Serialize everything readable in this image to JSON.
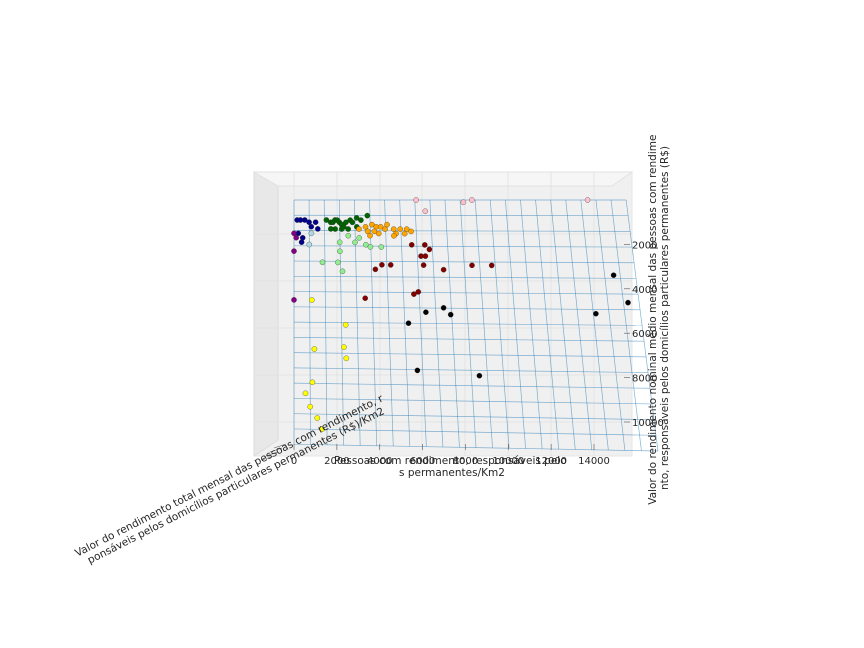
{
  "chart_data": {
    "type": "scatter",
    "projection": "3d",
    "grid": true,
    "xlabel_lines": [
      "Pessoas com rendimento, responsáveis pelo",
      "s permanentes/Km2"
    ],
    "ylabel_lines": [
      "Valor do rendimento nominal médio mensal das pessoas com rendime",
      "nto, responsáveis pelos domicílios particulares permanentes (R$)"
    ],
    "zlabel_lines": [
      "Valor do rendimento total mensal das pessoas com rendimento, r",
      "ponsáveis pelos domicílios particulares permanentes (R$)/Km2"
    ],
    "x_ticks": [
      "0",
      "2000",
      "4000",
      "6000",
      "8000",
      "10000",
      "12000",
      "14000"
    ],
    "y_ticks": [
      "2000",
      "4000",
      "6000",
      "8000",
      "10000"
    ],
    "xlim": [
      0,
      15500
    ],
    "ylim": [
      0,
      11000
    ],
    "surface": {
      "label": "fitted plane",
      "color": "#1f77b4"
    },
    "series": [
      {
        "color": "#00008b",
        "points": [
          [
            150,
            900
          ],
          [
            300,
            900
          ],
          [
            500,
            900
          ],
          [
            700,
            1000
          ],
          [
            1000,
            1000
          ],
          [
            200,
            1500
          ],
          [
            400,
            1700
          ],
          [
            350,
            1900
          ],
          [
            800,
            1200
          ],
          [
            1100,
            1300
          ]
        ]
      },
      {
        "color": "#006400",
        "points": [
          [
            1500,
            900
          ],
          [
            1700,
            1000
          ],
          [
            1800,
            1000
          ],
          [
            1900,
            900
          ],
          [
            2000,
            900
          ],
          [
            2100,
            1000
          ],
          [
            2200,
            1100
          ],
          [
            2400,
            1000
          ],
          [
            2600,
            900
          ],
          [
            2700,
            1000
          ],
          [
            2900,
            800
          ],
          [
            3100,
            900
          ],
          [
            3400,
            700
          ],
          [
            2300,
            1200
          ],
          [
            1900,
            1300
          ],
          [
            1700,
            1300
          ],
          [
            2900,
            1200
          ],
          [
            2500,
            1300
          ],
          [
            2200,
            1300
          ]
        ]
      },
      {
        "color": "#ffa500",
        "points": [
          [
            3000,
            1300
          ],
          [
            3300,
            1200
          ],
          [
            3600,
            1100
          ],
          [
            3800,
            1200
          ],
          [
            3400,
            1400
          ],
          [
            3700,
            1400
          ],
          [
            4000,
            1200
          ],
          [
            4200,
            1300
          ],
          [
            4300,
            1100
          ],
          [
            4600,
            1300
          ],
          [
            4700,
            1500
          ],
          [
            4900,
            1300
          ],
          [
            5200,
            1300
          ],
          [
            5400,
            1400
          ],
          [
            3900,
            1500
          ],
          [
            3500,
            1600
          ],
          [
            4600,
            1600
          ],
          [
            5100,
            1500
          ]
        ]
      },
      {
        "color": "#90ee90",
        "points": [
          [
            2500,
            1600
          ],
          [
            2800,
            1900
          ],
          [
            3000,
            1700
          ],
          [
            3300,
            2000
          ],
          [
            3500,
            2100
          ],
          [
            2100,
            1900
          ],
          [
            2100,
            2300
          ],
          [
            2000,
            2800
          ],
          [
            1300,
            2800
          ],
          [
            2200,
            3200
          ],
          [
            4000,
            2100
          ]
        ]
      },
      {
        "color": "#800000",
        "points": [
          [
            5400,
            2000
          ],
          [
            6000,
            2000
          ],
          [
            6200,
            2200
          ],
          [
            5800,
            2500
          ],
          [
            6000,
            2500
          ],
          [
            4000,
            2900
          ],
          [
            4400,
            2900
          ],
          [
            5900,
            2900
          ],
          [
            6800,
            3100
          ],
          [
            3700,
            3100
          ],
          [
            8100,
            2900
          ],
          [
            9000,
            2900
          ],
          [
            5600,
            4100
          ],
          [
            5400,
            4200
          ],
          [
            3200,
            4400
          ]
        ]
      },
      {
        "color": "#000000",
        "points": [
          [
            14500,
            3300
          ],
          [
            15000,
            4500
          ],
          [
            13500,
            5000
          ],
          [
            6700,
            4800
          ],
          [
            5900,
            5000
          ],
          [
            7000,
            5100
          ],
          [
            5100,
            5500
          ],
          [
            5400,
            7600
          ],
          [
            8100,
            7800
          ]
        ]
      },
      {
        "color": "#ffff00",
        "points": [
          [
            800,
            4500
          ],
          [
            2300,
            5600
          ],
          [
            2200,
            6600
          ],
          [
            900,
            6700
          ],
          [
            2300,
            7100
          ],
          [
            800,
            8200
          ],
          [
            500,
            8700
          ],
          [
            700,
            9300
          ],
          [
            1000,
            9800
          ],
          [
            1200,
            10300
          ]
        ]
      },
      {
        "color": "#800080",
        "points": [
          [
            0,
            1500
          ],
          [
            100,
            1700
          ],
          [
            0,
            2300
          ],
          [
            0,
            4500
          ]
        ]
      },
      {
        "color": "#ffc0cb",
        "points": [
          [
            5700,
            0
          ],
          [
            6100,
            500
          ],
          [
            7900,
            100
          ],
          [
            8300,
            0
          ],
          [
            13700,
            0
          ]
        ]
      },
      {
        "color": "#add8e6",
        "points": [
          [
            800,
            1500
          ],
          [
            700,
            2000
          ]
        ]
      }
    ]
  }
}
